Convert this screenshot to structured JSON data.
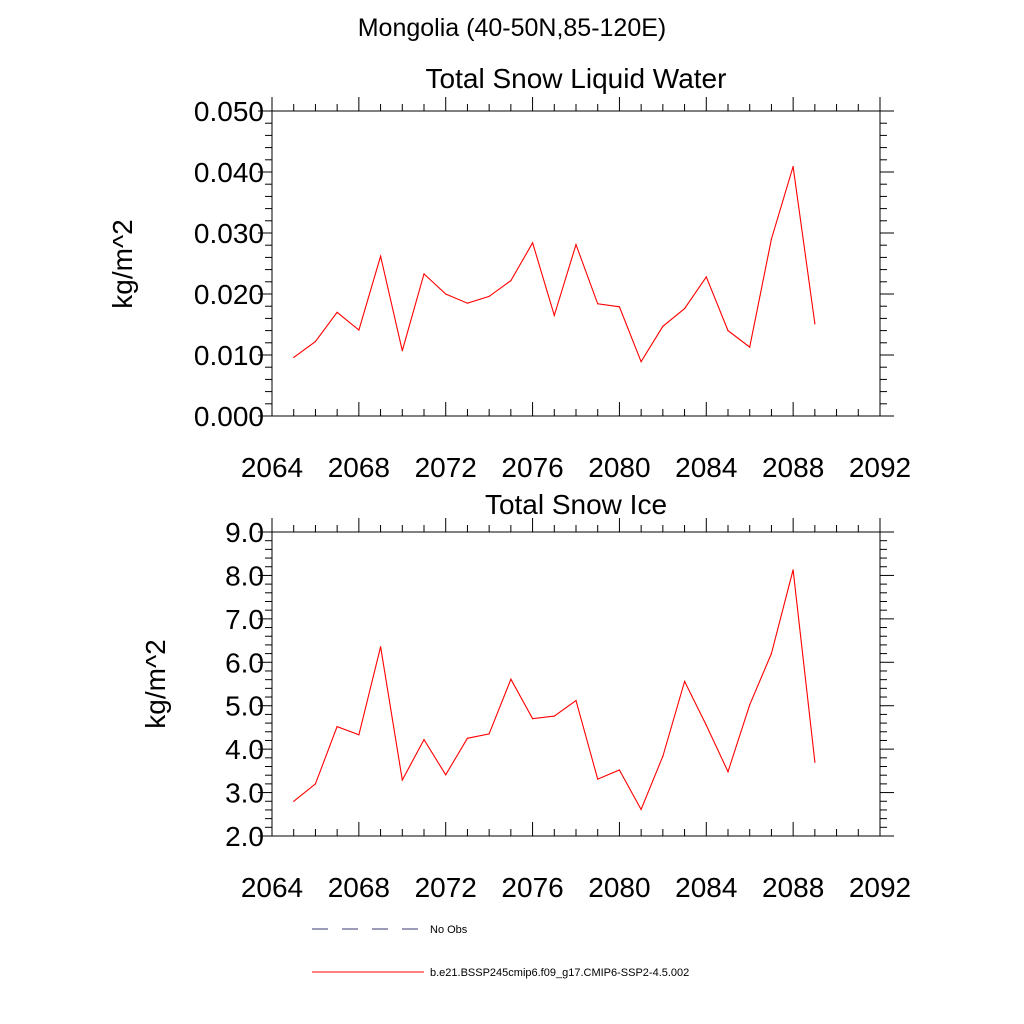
{
  "figure": {
    "supertitle": "Mongolia (40-50N,85-120E)"
  },
  "chart_data": [
    {
      "type": "line",
      "title": "Total Snow Liquid Water",
      "xlabel": "",
      "ylabel": "kg/m^2",
      "xlim": [
        2064,
        2092
      ],
      "ylim": [
        0.0,
        0.05
      ],
      "x_ticks": [
        "2064",
        "2068",
        "2072",
        "2076",
        "2080",
        "2084",
        "2088",
        "2092"
      ],
      "y_ticks": [
        "0.000",
        "0.010",
        "0.020",
        "0.030",
        "0.040",
        "0.050"
      ],
      "grid": false,
      "x": [
        2065,
        2066,
        2067,
        2068,
        2069,
        2070,
        2071,
        2072,
        2073,
        2074,
        2075,
        2076,
        2077,
        2078,
        2079,
        2080,
        2081,
        2082,
        2083,
        2084,
        2085,
        2086,
        2087,
        2088,
        2089
      ],
      "series": [
        {
          "name": "b.e21.BSSP245cmip6.f09_g17.CMIP6-SSP2-4.5.002",
          "color": "#ff0000",
          "values": [
            0.0096,
            0.0122,
            0.017,
            0.0141,
            0.0262,
            0.0107,
            0.0233,
            0.02,
            0.0185,
            0.0196,
            0.0222,
            0.0284,
            0.0165,
            0.0281,
            0.0184,
            0.0179,
            0.0089,
            0.0147,
            0.0176,
            0.0228,
            0.014,
            0.0113,
            0.029,
            0.0409,
            0.0151
          ]
        }
      ]
    },
    {
      "type": "line",
      "title": "Total Snow Ice",
      "xlabel": "",
      "ylabel": "kg/m^2",
      "xlim": [
        2064,
        2092
      ],
      "ylim": [
        2.0,
        9.0
      ],
      "x_ticks": [
        "2064",
        "2068",
        "2072",
        "2076",
        "2080",
        "2084",
        "2088",
        "2092"
      ],
      "y_ticks": [
        "2.0",
        "3.0",
        "4.0",
        "5.0",
        "6.0",
        "7.0",
        "8.0",
        "9.0"
      ],
      "grid": false,
      "x": [
        2065,
        2066,
        2067,
        2068,
        2069,
        2070,
        2071,
        2072,
        2073,
        2074,
        2075,
        2076,
        2077,
        2078,
        2079,
        2080,
        2081,
        2082,
        2083,
        2084,
        2085,
        2086,
        2087,
        2088,
        2089
      ],
      "series": [
        {
          "name": "b.e21.BSSP245cmip6.f09_g17.CMIP6-SSP2-4.5.002",
          "color": "#ff0000",
          "values": [
            2.8,
            3.2,
            4.52,
            4.33,
            6.36,
            3.29,
            4.22,
            3.41,
            4.25,
            4.35,
            5.61,
            4.7,
            4.76,
            5.12,
            3.31,
            3.52,
            2.61,
            3.84,
            5.56,
            4.55,
            3.48,
            5.02,
            6.2,
            8.13,
            3.7
          ]
        }
      ]
    }
  ],
  "legend": {
    "placement": "bottom",
    "entries": [
      {
        "label": "No Obs",
        "style": "dashed",
        "color": "#3a3a6e"
      },
      {
        "label": "b.e21.BSSP245cmip6.f09_g17.CMIP6-SSP2-4.5.002",
        "style": "solid",
        "color": "#ff0000"
      }
    ]
  }
}
